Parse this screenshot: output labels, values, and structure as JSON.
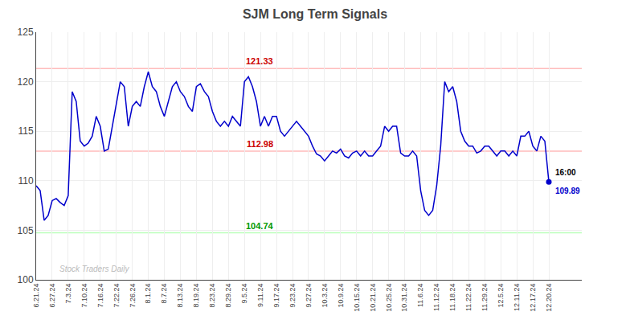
{
  "chart_data": {
    "type": "line",
    "title": "SJM Long Term Signals",
    "color": "#0000cc",
    "categories": [
      "6.21.24",
      null,
      null,
      null,
      "6.27.24",
      null,
      null,
      null,
      "7.3.24",
      null,
      null,
      null,
      "7.10.24",
      null,
      null,
      null,
      "7.16.24",
      null,
      null,
      null,
      "7.22.24",
      null,
      null,
      null,
      "7.26.24",
      null,
      null,
      null,
      "8.1.24",
      null,
      null,
      null,
      "8.7.24",
      null,
      null,
      null,
      "8.13.24",
      null,
      null,
      null,
      "8.19.24",
      null,
      null,
      null,
      "8.23.24",
      null,
      null,
      null,
      "8.29.24",
      null,
      null,
      null,
      "9.5.24",
      null,
      null,
      null,
      "9.11.24",
      null,
      null,
      null,
      "9.17.24",
      null,
      null,
      null,
      "9.23.24",
      null,
      null,
      null,
      "9.27.24",
      null,
      null,
      null,
      "10.3.24",
      null,
      null,
      null,
      "10.9.24",
      null,
      null,
      null,
      "10.15.24",
      null,
      null,
      null,
      "10.21.24",
      null,
      null,
      null,
      "10.25.24",
      null,
      null,
      null,
      "10.31.24",
      null,
      null,
      null,
      "11.6.24",
      null,
      null,
      null,
      "11.12.24",
      null,
      null,
      null,
      "11.18.24",
      null,
      null,
      null,
      "11.22.24",
      null,
      null,
      null,
      "11.29.24",
      null,
      null,
      null,
      "12.5.24",
      null,
      null,
      null,
      "12.11.24",
      null,
      null,
      null,
      "12.17.24",
      null,
      null,
      null,
      "12.20.24"
    ],
    "values": [
      109.5,
      109.0,
      106.0,
      106.5,
      108.0,
      108.2,
      107.8,
      107.5,
      108.5,
      119.0,
      118.0,
      114.0,
      113.5,
      113.8,
      114.5,
      116.5,
      115.5,
      113.0,
      113.2,
      115.5,
      117.5,
      120.0,
      119.5,
      115.5,
      117.5,
      118.0,
      117.5,
      119.5,
      121.0,
      119.5,
      119.0,
      117.5,
      116.5,
      118.0,
      119.5,
      120.0,
      119.0,
      118.5,
      117.5,
      117.0,
      119.5,
      119.8,
      119.0,
      118.5,
      117.0,
      116.0,
      115.5,
      116.0,
      115.5,
      116.5,
      116.0,
      115.5,
      120.0,
      120.5,
      119.5,
      118.0,
      115.5,
      116.5,
      115.5,
      116.5,
      116.5,
      115.0,
      114.5,
      115.0,
      115.5,
      116.0,
      115.5,
      115.0,
      114.5,
      113.5,
      112.7,
      112.5,
      112.0,
      112.5,
      113.0,
      112.8,
      113.2,
      112.5,
      112.3,
      112.8,
      113.0,
      112.5,
      113.0,
      112.5,
      112.5,
      113.0,
      113.5,
      115.5,
      115.0,
      115.5,
      115.5,
      112.8,
      112.5,
      112.5,
      113.0,
      112.5,
      109.0,
      107.0,
      106.5,
      107.0,
      109.5,
      113.5,
      120.0,
      119.0,
      119.5,
      118.0,
      115.0,
      114.0,
      113.5,
      113.5,
      112.8,
      113.0,
      113.5,
      113.5,
      113.0,
      112.5,
      113.0,
      113.0,
      112.5,
      113.0,
      112.5,
      114.5,
      114.5,
      115.0,
      113.5,
      113.0,
      114.5,
      114.0,
      109.89
    ],
    "hlines": [
      {
        "value": 121.33,
        "color": "#ffbbbb"
      },
      {
        "value": 112.98,
        "color": "#ffbbbb"
      },
      {
        "value": 104.74,
        "color": "#bbffbb"
      }
    ],
    "annotations": [
      {
        "text": "121.33",
        "y": 121.33,
        "color": "#cc0000"
      },
      {
        "text": "112.98",
        "y": 112.98,
        "color": "#cc0000"
      },
      {
        "text": "104.74",
        "y": 104.74,
        "color": "#009900"
      }
    ],
    "end_labels": [
      {
        "text": "16:00",
        "color": "#000000"
      },
      {
        "text": "109.89",
        "color": "#0000cc"
      }
    ],
    "watermark": {
      "text": "Stock Traders Daily",
      "color": "#bbbbbb"
    },
    "ylim": [
      100,
      125
    ],
    "yticks": [
      100,
      105,
      110,
      115,
      120,
      125
    ],
    "grid": true
  }
}
